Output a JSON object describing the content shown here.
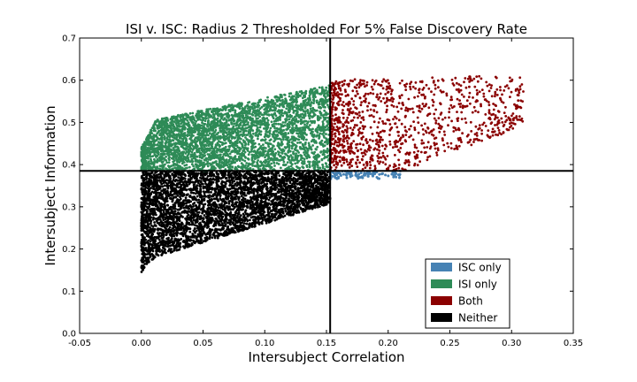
{
  "chart_data": {
    "type": "scatter",
    "title": "ISI v. ISC: Radius 2 Thresholded For 5% False Discovery Rate",
    "xlabel": "Intersubject Correlation",
    "ylabel": "Intersubject Information",
    "xlim": [
      -0.05,
      0.35
    ],
    "ylim": [
      0.0,
      0.7
    ],
    "xticks": [
      "-0.05",
      "0.00",
      "0.05",
      "0.10",
      "0.15",
      "0.20",
      "0.25",
      "0.30",
      "0.35"
    ],
    "yticks": [
      "0.0",
      "0.1",
      "0.2",
      "0.3",
      "0.4",
      "0.5",
      "0.6",
      "0.7"
    ],
    "grid": false,
    "legend_placement": "lower-right",
    "thresholds": {
      "isc": 0.153,
      "isi": 0.385
    },
    "series": [
      {
        "name": "ISC only",
        "color": "#4682b4"
      },
      {
        "name": "ISI only",
        "color": "#2e8b57"
      },
      {
        "name": "Both",
        "color": "#8b0000"
      },
      {
        "name": "Neither",
        "color": "#000000"
      }
    ],
    "regions": {
      "isi_only": {
        "x": [
          0.0,
          0.153
        ],
        "y": [
          0.385,
          0.59
        ]
      },
      "both": {
        "x": [
          0.153,
          0.31
        ],
        "y": [
          0.385,
          0.61
        ]
      },
      "isc_only": {
        "x": [
          0.153,
          0.21
        ],
        "y": [
          0.365,
          0.385
        ]
      },
      "neither": {
        "x": [
          0.0,
          0.153
        ],
        "y": [
          0.09,
          0.385
        ]
      }
    }
  }
}
